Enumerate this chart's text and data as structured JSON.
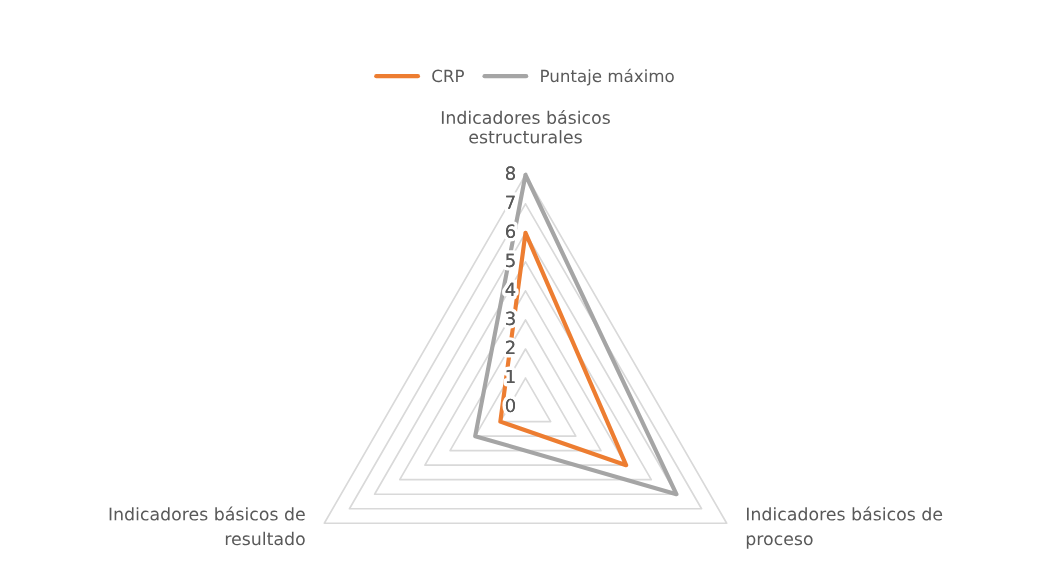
{
  "chart_data": {
    "type": "radar",
    "categories": [
      "Indicadores básicos estructurales",
      "Indicadores básicos de proceso",
      "Indicadores básicos de resultado"
    ],
    "series": [
      {
        "name": "CRP",
        "color": "#ed7d31",
        "values": [
          6,
          4,
          1
        ]
      },
      {
        "name": "Puntaje máximo",
        "color": "#a5a5a5",
        "values": [
          8,
          6,
          2
        ]
      }
    ],
    "ylim": [
      0,
      8
    ],
    "yticks": [
      0,
      1,
      2,
      3,
      4,
      5,
      6,
      7,
      8
    ],
    "grid": true,
    "legend": "top"
  }
}
